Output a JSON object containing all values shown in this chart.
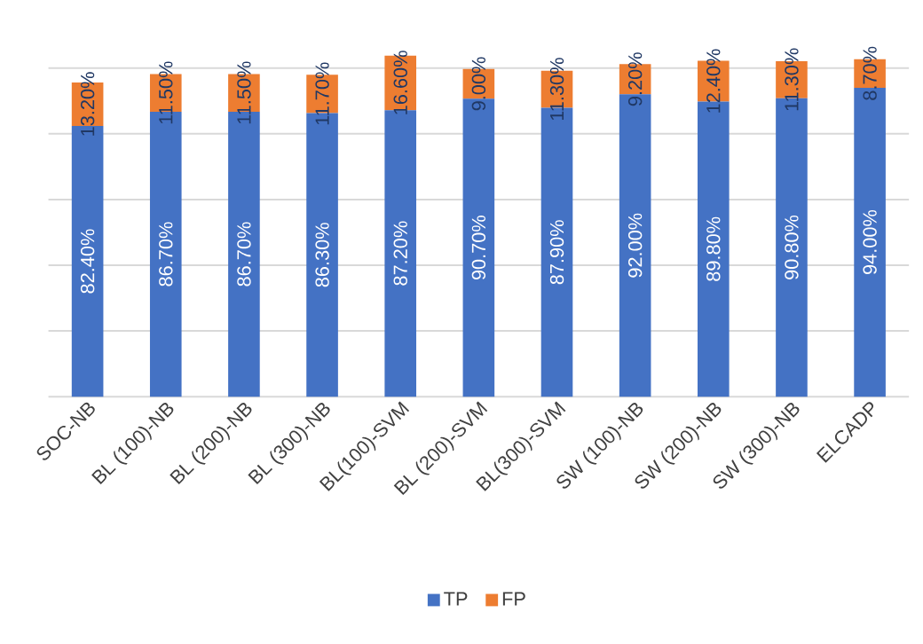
{
  "chart_data": {
    "type": "bar",
    "stacked": true,
    "categories": [
      "SOC-NB",
      "BL (100)-NB",
      "BL (200)-NB",
      "BL (300)-NB",
      "BL(100)-SVM",
      "BL (200)-SVM",
      "BL(300)-SVM",
      "SW (100)-NB",
      "SW (200)-NB",
      "SW (300)-NB",
      "ELCADP"
    ],
    "series": [
      {
        "name": "TP",
        "color": "#4472c4",
        "values": [
          82.4,
          86.7,
          86.7,
          86.3,
          87.2,
          90.7,
          87.9,
          92.0,
          89.8,
          90.8,
          94.0
        ],
        "value_labels": [
          "82.40%",
          "86.70%",
          "86.70%",
          "86.30%",
          "87.20%",
          "90.70%",
          "87.90%",
          "92.00%",
          "89.80%",
          "90.80%",
          "94.00%"
        ]
      },
      {
        "name": "FP",
        "color": "#ed7d31",
        "values": [
          13.2,
          11.5,
          11.5,
          11.7,
          16.6,
          9.0,
          11.3,
          9.2,
          12.4,
          11.3,
          8.7
        ],
        "value_labels": [
          "13.20%",
          "11.50%",
          "11.50%",
          "11.70%",
          "16.60%",
          "9.00%",
          "11.30%",
          "9.20%",
          "12.40%",
          "11.30%",
          "8.70%"
        ]
      }
    ],
    "yticks": [
      {
        "value": 0,
        "label": null
      },
      {
        "value": 20,
        "label": null
      },
      {
        "value": 40,
        "label": null
      },
      {
        "value": 60,
        "label": null
      },
      {
        "value": 80,
        "label": null
      },
      {
        "value": 100,
        "label": null
      }
    ],
    "tick_labels": "x",
    "grid": "y",
    "legend": "bottom"
  }
}
